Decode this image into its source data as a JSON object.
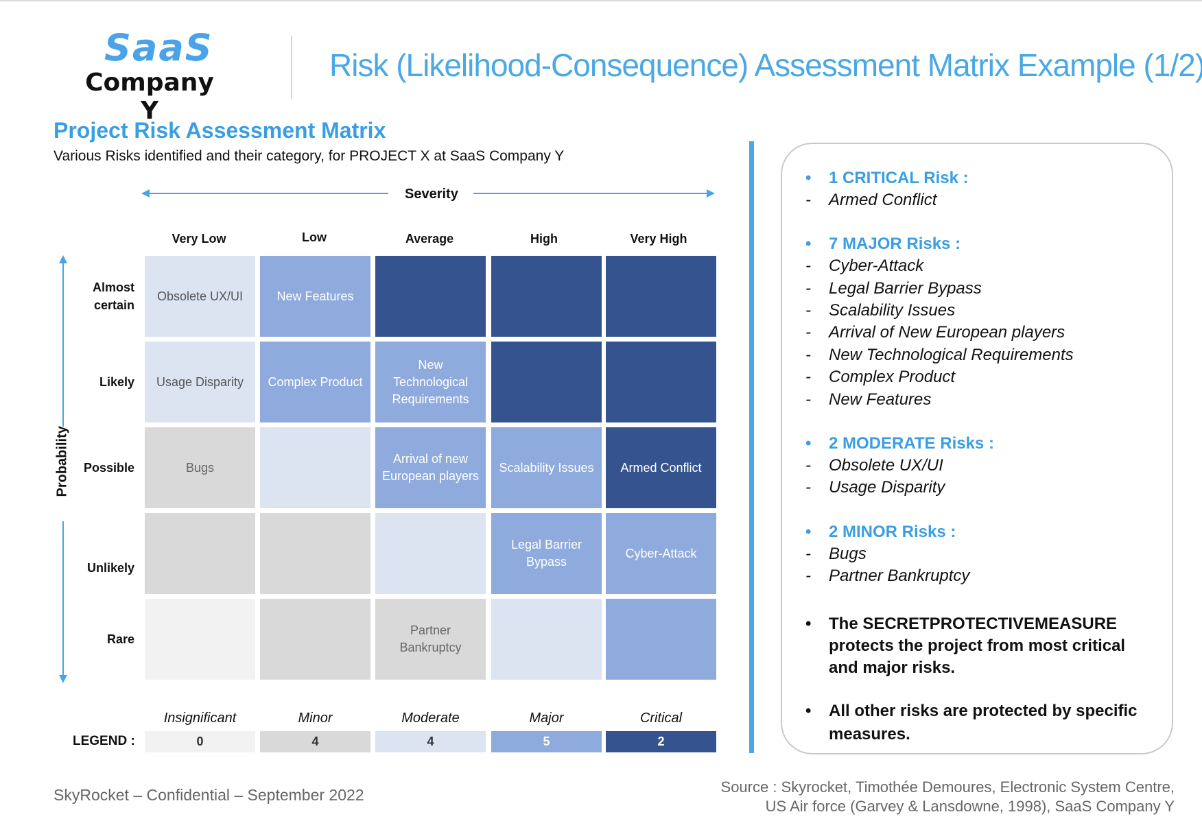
{
  "header": {
    "logo_line1": "SaaS",
    "logo_line2": "Company Y",
    "title": "Risk (Likelihood-Consequence) Assessment Matrix Example (1/2)"
  },
  "section": {
    "title": "Project Risk Assessment Matrix",
    "subtitle": "Various Risks identified and their category, for PROJECT X at SaaS Company Y"
  },
  "matrix": {
    "severity_label": "Severity",
    "probability_label": "Probability",
    "severity_levels": [
      "Very Low",
      "Low",
      "Average",
      "High",
      "Very High"
    ],
    "probability_levels": [
      {
        "l1": "Almost",
        "l2": "certain"
      },
      {
        "l1": "",
        "l2": "Likely"
      },
      {
        "l1": "",
        "l2": "Possible"
      },
      {
        "l1": "",
        "l2": "Unlikely"
      },
      {
        "l1": "",
        "l2": "Rare"
      }
    ],
    "cells": [
      [
        "Obsolete UX/UI",
        "New Features",
        "",
        "",
        ""
      ],
      [
        "Usage Disparity",
        "Complex Product",
        "New Technological Requirements",
        "",
        ""
      ],
      [
        "Bugs",
        "",
        "Arrival of new European players",
        "Scalability Issues",
        "Armed Conflict"
      ],
      [
        "",
        "",
        "",
        "Legal Barrier Bypass",
        "Cyber-Attack"
      ],
      [
        "",
        "",
        "Partner Bankruptcy",
        "",
        ""
      ]
    ]
  },
  "legend": {
    "label": "LEGEND :",
    "categories": [
      {
        "name": "Insignificant",
        "count": "0",
        "color": "#f2f2f2"
      },
      {
        "name": "Minor",
        "count": "4",
        "color": "#d9d9d9"
      },
      {
        "name": "Moderate",
        "count": "4",
        "color": "#dce3f1"
      },
      {
        "name": "Major",
        "count": "5",
        "color": "#8faadc"
      },
      {
        "name": "Critical",
        "count": "2",
        "color": "#35548f"
      }
    ]
  },
  "summary": {
    "critical": {
      "heading": "1 CRITICAL Risk :",
      "items": [
        "Armed Conflict"
      ]
    },
    "major": {
      "heading": "7 MAJOR Risks :",
      "items": [
        "Cyber-Attack",
        "Legal Barrier Bypass",
        "Scalability Issues",
        "Arrival of New European players",
        "New Technological Requirements",
        "Complex Product",
        "New Features"
      ]
    },
    "moderate": {
      "heading": "2 MODERATE Risks :",
      "items": [
        "Obsolete UX/UI",
        "Usage Disparity"
      ]
    },
    "minor": {
      "heading": "2 MINOR Risks :",
      "items": [
        "Bugs",
        "Partner Bankruptcy"
      ]
    },
    "note1": [
      "The SECRETPROTECTIVEMEASURE",
      "protects the project from most critical",
      "and major risks."
    ],
    "note2": [
      "All other risks are protected by specific",
      "measures."
    ]
  },
  "footer": {
    "confidential": "SkyRocket – Confidential – September 2022",
    "source_line1": "Source : Skyrocket, Timothée Demoures, Electronic System Centre,",
    "source_line2": "US Air force (Garvey & Lansdowne, 1998), SaaS Company Y"
  }
}
